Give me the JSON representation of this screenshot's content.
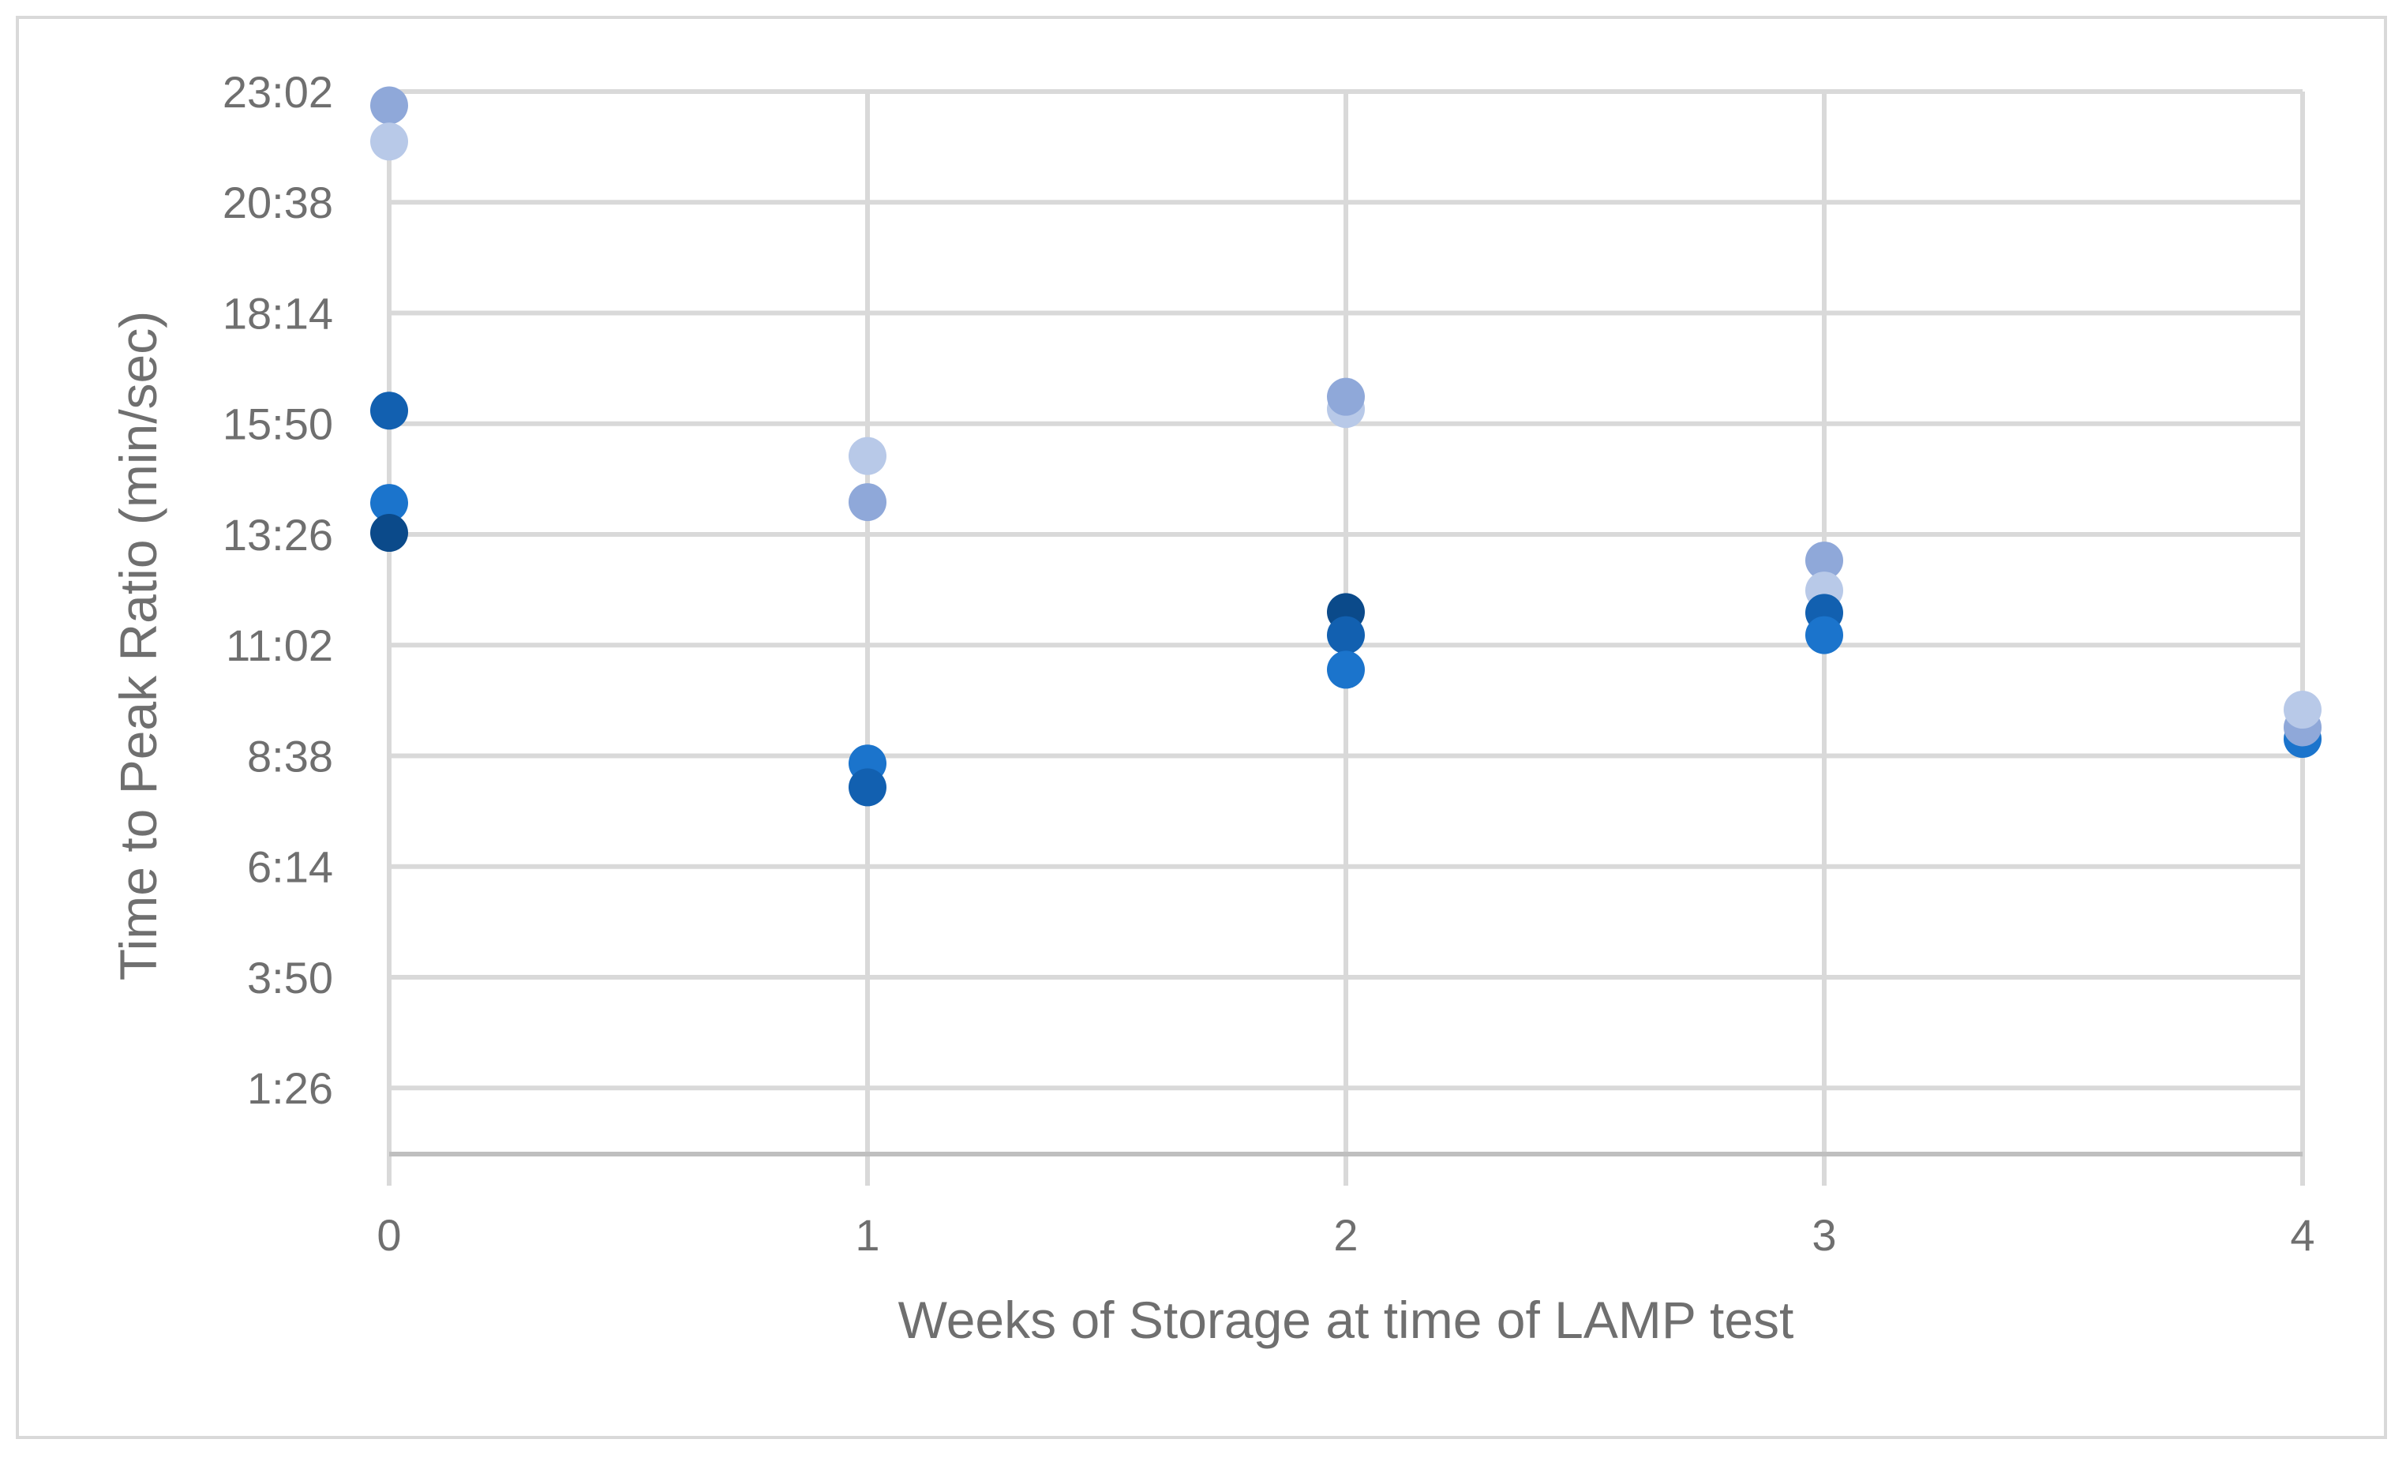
{
  "chart_data": {
    "type": "scatter",
    "title": "",
    "xlabel": "Weeks of Storage at time of LAMP test",
    "ylabel": "Time to Peak Ratio (min/sec)",
    "xlim": [
      0,
      4
    ],
    "ylim_seconds": [
      0,
      1382
    ],
    "x_ticks": [
      {
        "value": 0,
        "label": "0"
      },
      {
        "value": 1,
        "label": "1"
      },
      {
        "value": 2,
        "label": "2"
      },
      {
        "value": 3,
        "label": "3"
      },
      {
        "value": 4,
        "label": "4"
      }
    ],
    "y_ticks": [
      {
        "value": 86,
        "label": "1:26"
      },
      {
        "value": 230,
        "label": "3:50"
      },
      {
        "value": 374,
        "label": "6:14"
      },
      {
        "value": 518,
        "label": "8:38"
      },
      {
        "value": 662,
        "label": "11:02"
      },
      {
        "value": 806,
        "label": "13:26"
      },
      {
        "value": 950,
        "label": "15:50"
      },
      {
        "value": 1094,
        "label": "18:14"
      },
      {
        "value": 1238,
        "label": "20:38"
      },
      {
        "value": 1382,
        "label": "23:02"
      }
    ],
    "grid": true,
    "point_colors": [
      "#0b4a8a",
      "#1260b0",
      "#1b74cc",
      "#8fa8d9",
      "#b8c9e8"
    ],
    "points": [
      {
        "x": 0,
        "y": 1364,
        "color": "#8fa8d9"
      },
      {
        "x": 0,
        "y": 1317,
        "color": "#b8c9e8"
      },
      {
        "x": 0,
        "y": 967,
        "color": "#1260b0"
      },
      {
        "x": 0,
        "y": 847,
        "color": "#1b74cc"
      },
      {
        "x": 0,
        "y": 808,
        "color": "#0b4a8a"
      },
      {
        "x": 1,
        "y": 908,
        "color": "#b8c9e8"
      },
      {
        "x": 1,
        "y": 848,
        "color": "#8fa8d9"
      },
      {
        "x": 1,
        "y": 508,
        "color": "#1b74cc"
      },
      {
        "x": 1,
        "y": 477,
        "color": "#1260b0"
      },
      {
        "x": 2,
        "y": 969,
        "color": "#b8c9e8"
      },
      {
        "x": 2,
        "y": 985,
        "color": "#8fa8d9"
      },
      {
        "x": 2,
        "y": 705,
        "color": "#0b4a8a"
      },
      {
        "x": 2,
        "y": 675,
        "color": "#1260b0"
      },
      {
        "x": 2,
        "y": 630,
        "color": "#1b74cc"
      },
      {
        "x": 3,
        "y": 772,
        "color": "#8fa8d9"
      },
      {
        "x": 3,
        "y": 733,
        "color": "#b8c9e8"
      },
      {
        "x": 3,
        "y": 704,
        "color": "#1260b0"
      },
      {
        "x": 3,
        "y": 675,
        "color": "#1b74cc"
      },
      {
        "x": 4,
        "y": 540,
        "color": "#1b74cc"
      },
      {
        "x": 4,
        "y": 555,
        "color": "#8fa8d9"
      },
      {
        "x": 4,
        "y": 578,
        "color": "#b8c9e8"
      }
    ]
  }
}
